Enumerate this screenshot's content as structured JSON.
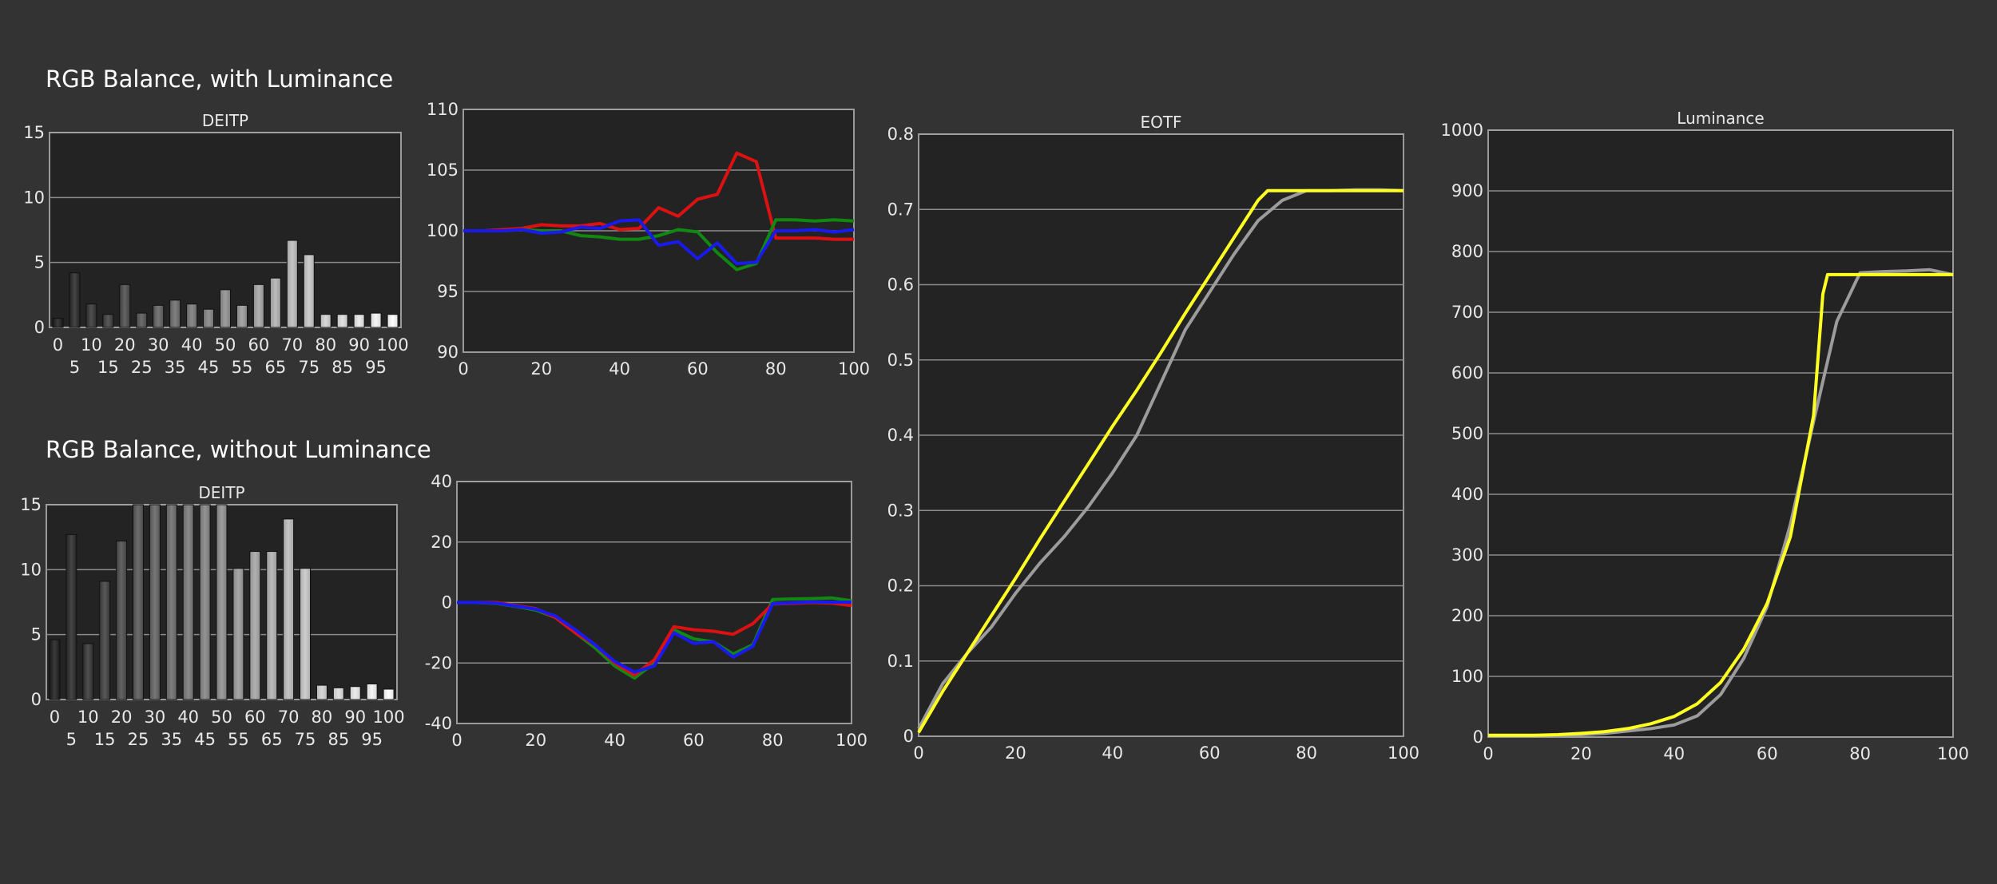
{
  "sections": [
    {
      "title": "RGB Balance, with Luminance"
    },
    {
      "title": "RGB Balance, without Luminance"
    }
  ],
  "colors": {
    "red": "#dd1111",
    "green": "#118811",
    "blue": "#1a1aee",
    "yellow": "#ffff22",
    "gray": "#9c9c9c"
  },
  "chart_data": [
    {
      "type": "bar",
      "title": "DEITP",
      "categories": [
        0,
        5,
        10,
        15,
        20,
        25,
        30,
        35,
        40,
        45,
        50,
        55,
        60,
        65,
        70,
        75,
        80,
        85,
        90,
        95,
        100
      ],
      "values": [
        0.7,
        4.2,
        1.8,
        1.0,
        3.3,
        1.1,
        1.7,
        2.1,
        1.8,
        1.4,
        2.9,
        1.7,
        3.3,
        3.8,
        6.7,
        5.6,
        1.0,
        1.0,
        1.0,
        1.1,
        1.0
      ],
      "ylim": [
        0,
        15
      ],
      "yticks": [
        0,
        5,
        10,
        15
      ],
      "xticks_top": [
        "0",
        "10",
        "20",
        "30",
        "40",
        "50",
        "60",
        "70",
        "80",
        "90",
        "100"
      ],
      "xticks_bottom": [
        "5",
        "15",
        "25",
        "35",
        "45",
        "55",
        "65",
        "75",
        "85",
        "95"
      ]
    },
    {
      "type": "line",
      "title": "",
      "xlim": [
        0,
        100
      ],
      "ylim": [
        90,
        110
      ],
      "xticks": [
        0,
        20,
        40,
        60,
        80,
        100
      ],
      "yticks": [
        90,
        95,
        100,
        105,
        110
      ],
      "series": [
        {
          "color": "red",
          "points": [
            [
              0,
              100
            ],
            [
              5,
              100
            ],
            [
              10,
              100.1
            ],
            [
              15,
              100.2
            ],
            [
              20,
              100.5
            ],
            [
              25,
              100.4
            ],
            [
              30,
              100.4
            ],
            [
              35,
              100.6
            ],
            [
              40,
              100.1
            ],
            [
              45,
              100.2
            ],
            [
              50,
              101.9
            ],
            [
              55,
              101.2
            ],
            [
              60,
              102.6
            ],
            [
              65,
              103
            ],
            [
              70,
              106.4
            ],
            [
              75,
              105.7
            ],
            [
              80,
              99.4
            ],
            [
              85,
              99.4
            ],
            [
              90,
              99.4
            ],
            [
              95,
              99.3
            ],
            [
              100,
              99.3
            ]
          ]
        },
        {
          "color": "green",
          "points": [
            [
              0,
              100
            ],
            [
              5,
              100
            ],
            [
              10,
              100
            ],
            [
              15,
              100.1
            ],
            [
              20,
              100
            ],
            [
              25,
              100
            ],
            [
              30,
              99.6
            ],
            [
              35,
              99.5
            ],
            [
              40,
              99.3
            ],
            [
              45,
              99.3
            ],
            [
              50,
              99.6
            ],
            [
              55,
              100.1
            ],
            [
              60,
              99.9
            ],
            [
              65,
              98.2
            ],
            [
              70,
              96.8
            ],
            [
              75,
              97.3
            ],
            [
              80,
              100.9
            ],
            [
              85,
              100.9
            ],
            [
              90,
              100.8
            ],
            [
              95,
              100.9
            ],
            [
              100,
              100.8
            ]
          ]
        },
        {
          "color": "blue",
          "points": [
            [
              0,
              100
            ],
            [
              5,
              100
            ],
            [
              10,
              100
            ],
            [
              15,
              100.1
            ],
            [
              20,
              99.8
            ],
            [
              25,
              99.9
            ],
            [
              30,
              100.3
            ],
            [
              35,
              100.2
            ],
            [
              40,
              100.8
            ],
            [
              45,
              100.9
            ],
            [
              50,
              98.8
            ],
            [
              55,
              99.1
            ],
            [
              60,
              97.7
            ],
            [
              65,
              99
            ],
            [
              70,
              97.3
            ],
            [
              75,
              97.4
            ],
            [
              80,
              100
            ],
            [
              85,
              100
            ],
            [
              90,
              100.1
            ],
            [
              95,
              99.9
            ],
            [
              100,
              100.1
            ]
          ]
        }
      ]
    },
    {
      "type": "bar",
      "title": "DEITP",
      "categories": [
        0,
        5,
        10,
        15,
        20,
        25,
        30,
        35,
        40,
        45,
        50,
        55,
        60,
        65,
        70,
        75,
        80,
        85,
        90,
        95,
        100
      ],
      "values": [
        4.6,
        12.7,
        4.3,
        9.1,
        12.2,
        15,
        15,
        15,
        15,
        15,
        15,
        10.1,
        11.4,
        11.4,
        13.9,
        10.1,
        1.1,
        0.9,
        1.0,
        1.2,
        0.8
      ],
      "ylim": [
        0,
        15
      ],
      "yticks": [
        0,
        5,
        10,
        15
      ],
      "xticks_top": [
        "0",
        "10",
        "20",
        "30",
        "40",
        "50",
        "60",
        "70",
        "80",
        "90",
        "100"
      ],
      "xticks_bottom": [
        "5",
        "15",
        "25",
        "35",
        "45",
        "55",
        "65",
        "75",
        "85",
        "95"
      ]
    },
    {
      "type": "line",
      "title": "",
      "xlim": [
        0,
        100
      ],
      "ylim": [
        -40,
        40
      ],
      "xticks": [
        0,
        20,
        40,
        60,
        80,
        100
      ],
      "yticks": [
        -40,
        -20,
        0,
        20,
        40
      ],
      "series": [
        {
          "color": "green",
          "points": [
            [
              0,
              0
            ],
            [
              5,
              0
            ],
            [
              10,
              -0.3
            ],
            [
              15,
              -1.3
            ],
            [
              20,
              -2.5
            ],
            [
              25,
              -5
            ],
            [
              30,
              -10
            ],
            [
              35,
              -15
            ],
            [
              40,
              -21
            ],
            [
              45,
              -25
            ],
            [
              50,
              -20
            ],
            [
              55,
              -9
            ],
            [
              60,
              -12
            ],
            [
              65,
              -13
            ],
            [
              70,
              -17
            ],
            [
              75,
              -14
            ],
            [
              80,
              1
            ],
            [
              85,
              1.2
            ],
            [
              90,
              1.3
            ],
            [
              95,
              1.5
            ],
            [
              100,
              0.6
            ]
          ]
        },
        {
          "color": "red",
          "points": [
            [
              0,
              0
            ],
            [
              5,
              0
            ],
            [
              10,
              0
            ],
            [
              15,
              -1
            ],
            [
              20,
              -2
            ],
            [
              25,
              -5
            ],
            [
              30,
              -10
            ],
            [
              35,
              -14
            ],
            [
              40,
              -20
            ],
            [
              45,
              -24
            ],
            [
              50,
              -19
            ],
            [
              55,
              -8
            ],
            [
              60,
              -9
            ],
            [
              65,
              -9.5
            ],
            [
              70,
              -10.5
            ],
            [
              75,
              -7
            ],
            [
              80,
              -0.5
            ],
            [
              85,
              -0.3
            ],
            [
              90,
              0
            ],
            [
              95,
              -0.2
            ],
            [
              100,
              -1
            ]
          ]
        },
        {
          "color": "blue",
          "points": [
            [
              0,
              0
            ],
            [
              5,
              0
            ],
            [
              10,
              -0.2
            ],
            [
              15,
              -1.2
            ],
            [
              20,
              -2.2
            ],
            [
              25,
              -4.5
            ],
            [
              30,
              -9
            ],
            [
              35,
              -14
            ],
            [
              40,
              -19.5
            ],
            [
              45,
              -23
            ],
            [
              50,
              -21
            ],
            [
              55,
              -10
            ],
            [
              60,
              -13.5
            ],
            [
              65,
              -13
            ],
            [
              70,
              -18
            ],
            [
              75,
              -14.5
            ],
            [
              80,
              -0.4
            ],
            [
              85,
              -0.1
            ],
            [
              90,
              0.2
            ],
            [
              95,
              0.1
            ],
            [
              100,
              0.1
            ]
          ]
        }
      ]
    },
    {
      "type": "line",
      "title": "EOTF",
      "xlim": [
        0,
        100
      ],
      "ylim": [
        0,
        0.8
      ],
      "xticks": [
        0,
        20,
        40,
        60,
        80,
        100
      ],
      "yticks": [
        0,
        0.1,
        0.2,
        0.3,
        0.4,
        0.5,
        0.6,
        0.7,
        0.8
      ],
      "ytick_labels": [
        "0",
        "0.1",
        "0.2",
        "0.3",
        "0.4",
        "0.5",
        "0.6",
        "0.7",
        "0.8"
      ],
      "series": [
        {
          "color": "gray",
          "points": [
            [
              0,
              0.01
            ],
            [
              5,
              0.07
            ],
            [
              10,
              0.11
            ],
            [
              15,
              0.145
            ],
            [
              20,
              0.19
            ],
            [
              25,
              0.23
            ],
            [
              30,
              0.265
            ],
            [
              35,
              0.305
            ],
            [
              40,
              0.35
            ],
            [
              45,
              0.4
            ],
            [
              50,
              0.47
            ],
            [
              55,
              0.54
            ],
            [
              60,
              0.59
            ],
            [
              65,
              0.64
            ],
            [
              70,
              0.685
            ],
            [
              75,
              0.712
            ],
            [
              80,
              0.725
            ],
            [
              85,
              0.725
            ],
            [
              90,
              0.726
            ],
            [
              95,
              0.726
            ],
            [
              100,
              0.725
            ]
          ]
        },
        {
          "color": "yellow",
          "points": [
            [
              0,
              0.005
            ],
            [
              5,
              0.06
            ],
            [
              10,
              0.11
            ],
            [
              15,
              0.16
            ],
            [
              20,
              0.21
            ],
            [
              25,
              0.262
            ],
            [
              30,
              0.312
            ],
            [
              35,
              0.362
            ],
            [
              40,
              0.412
            ],
            [
              45,
              0.46
            ],
            [
              50,
              0.51
            ],
            [
              55,
              0.562
            ],
            [
              60,
              0.612
            ],
            [
              65,
              0.662
            ],
            [
              70,
              0.712
            ],
            [
              72,
              0.725
            ],
            [
              75,
              0.725
            ],
            [
              80,
              0.725
            ],
            [
              90,
              0.725
            ],
            [
              100,
              0.725
            ]
          ]
        }
      ]
    },
    {
      "type": "line",
      "title": "Luminance",
      "xlim": [
        0,
        100
      ],
      "ylim": [
        0,
        1000
      ],
      "xticks": [
        0,
        20,
        40,
        60,
        80,
        100
      ],
      "yticks": [
        0,
        100,
        200,
        300,
        400,
        500,
        600,
        700,
        800,
        900,
        1000
      ],
      "series": [
        {
          "color": "gray",
          "points": [
            [
              0,
              2
            ],
            [
              10,
              2
            ],
            [
              20,
              4
            ],
            [
              25,
              6
            ],
            [
              30,
              10
            ],
            [
              35,
              14
            ],
            [
              40,
              20
            ],
            [
              45,
              35
            ],
            [
              50,
              70
            ],
            [
              55,
              130
            ],
            [
              60,
              215
            ],
            [
              65,
              350
            ],
            [
              70,
              520
            ],
            [
              75,
              685
            ],
            [
              80,
              765
            ],
            [
              85,
              767
            ],
            [
              90,
              768
            ],
            [
              95,
              770
            ],
            [
              100,
              762
            ]
          ]
        },
        {
          "color": "yellow",
          "points": [
            [
              0,
              3
            ],
            [
              10,
              3
            ],
            [
              15,
              4
            ],
            [
              20,
              6
            ],
            [
              25,
              9
            ],
            [
              30,
              14
            ],
            [
              35,
              22
            ],
            [
              40,
              34
            ],
            [
              45,
              55
            ],
            [
              50,
              90
            ],
            [
              55,
              145
            ],
            [
              60,
              220
            ],
            [
              65,
              330
            ],
            [
              70,
              530
            ],
            [
              72,
              730
            ],
            [
              73,
              762
            ],
            [
              75,
              762
            ],
            [
              80,
              762
            ],
            [
              90,
              762
            ],
            [
              100,
              762
            ]
          ]
        }
      ]
    }
  ]
}
